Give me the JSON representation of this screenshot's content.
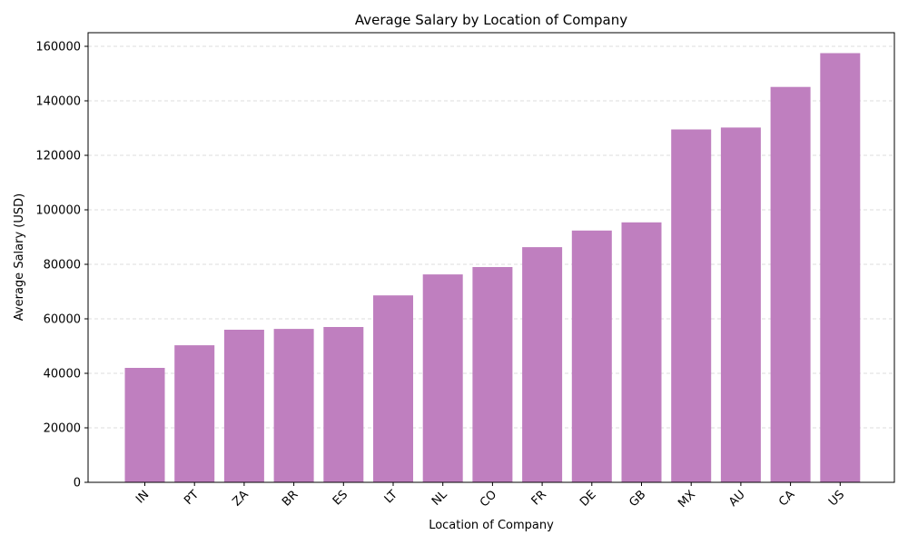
{
  "chart_data": {
    "type": "bar",
    "title": "Average Salary by Location of Company",
    "xlabel": "Location of Company",
    "ylabel": "Average Salary (USD)",
    "categories": [
      "IN",
      "PT",
      "ZA",
      "BR",
      "ES",
      "LT",
      "NL",
      "CO",
      "FR",
      "DE",
      "GB",
      "MX",
      "AU",
      "CA",
      "US"
    ],
    "values": [
      42000,
      50300,
      56000,
      56300,
      57000,
      68600,
      76300,
      79000,
      86300,
      92400,
      95400,
      129500,
      130200,
      145100,
      157500
    ],
    "ylim": [
      0,
      165000
    ],
    "yticks": [
      0,
      20000,
      40000,
      60000,
      80000,
      100000,
      120000,
      140000,
      160000
    ],
    "bar_color": "#bf7fbf",
    "grid": "y-dashed",
    "x_tick_rotation": 45
  }
}
